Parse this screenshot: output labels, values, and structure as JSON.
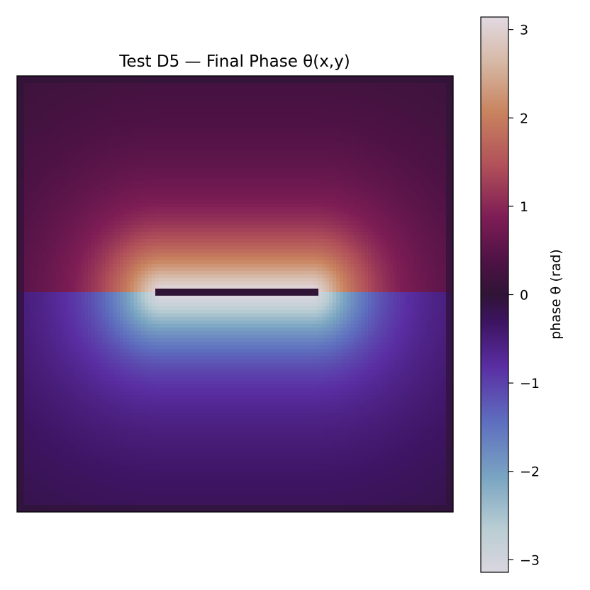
{
  "chart_data": {
    "type": "heatmap",
    "title": "Test D5 — Final Phase θ(x,y)",
    "colorbar": {
      "label": "phase θ (rad)",
      "range": [
        -3.14159,
        3.14159
      ],
      "ticks": [
        3,
        2,
        1,
        0,
        -1,
        -2,
        -3
      ],
      "tick_labels": [
        "3",
        "2",
        "1",
        "0",
        "−1",
        "−2",
        "−3"
      ],
      "colormap": "twilight_shifted"
    },
    "axes_visible": false,
    "grid": false,
    "field": {
      "description_values": "phase of a dipole-like vortex pair along a horizontal slit at the center",
      "peak_above": 2.2,
      "trough_below": -2.2,
      "background": 0.0
    }
  }
}
